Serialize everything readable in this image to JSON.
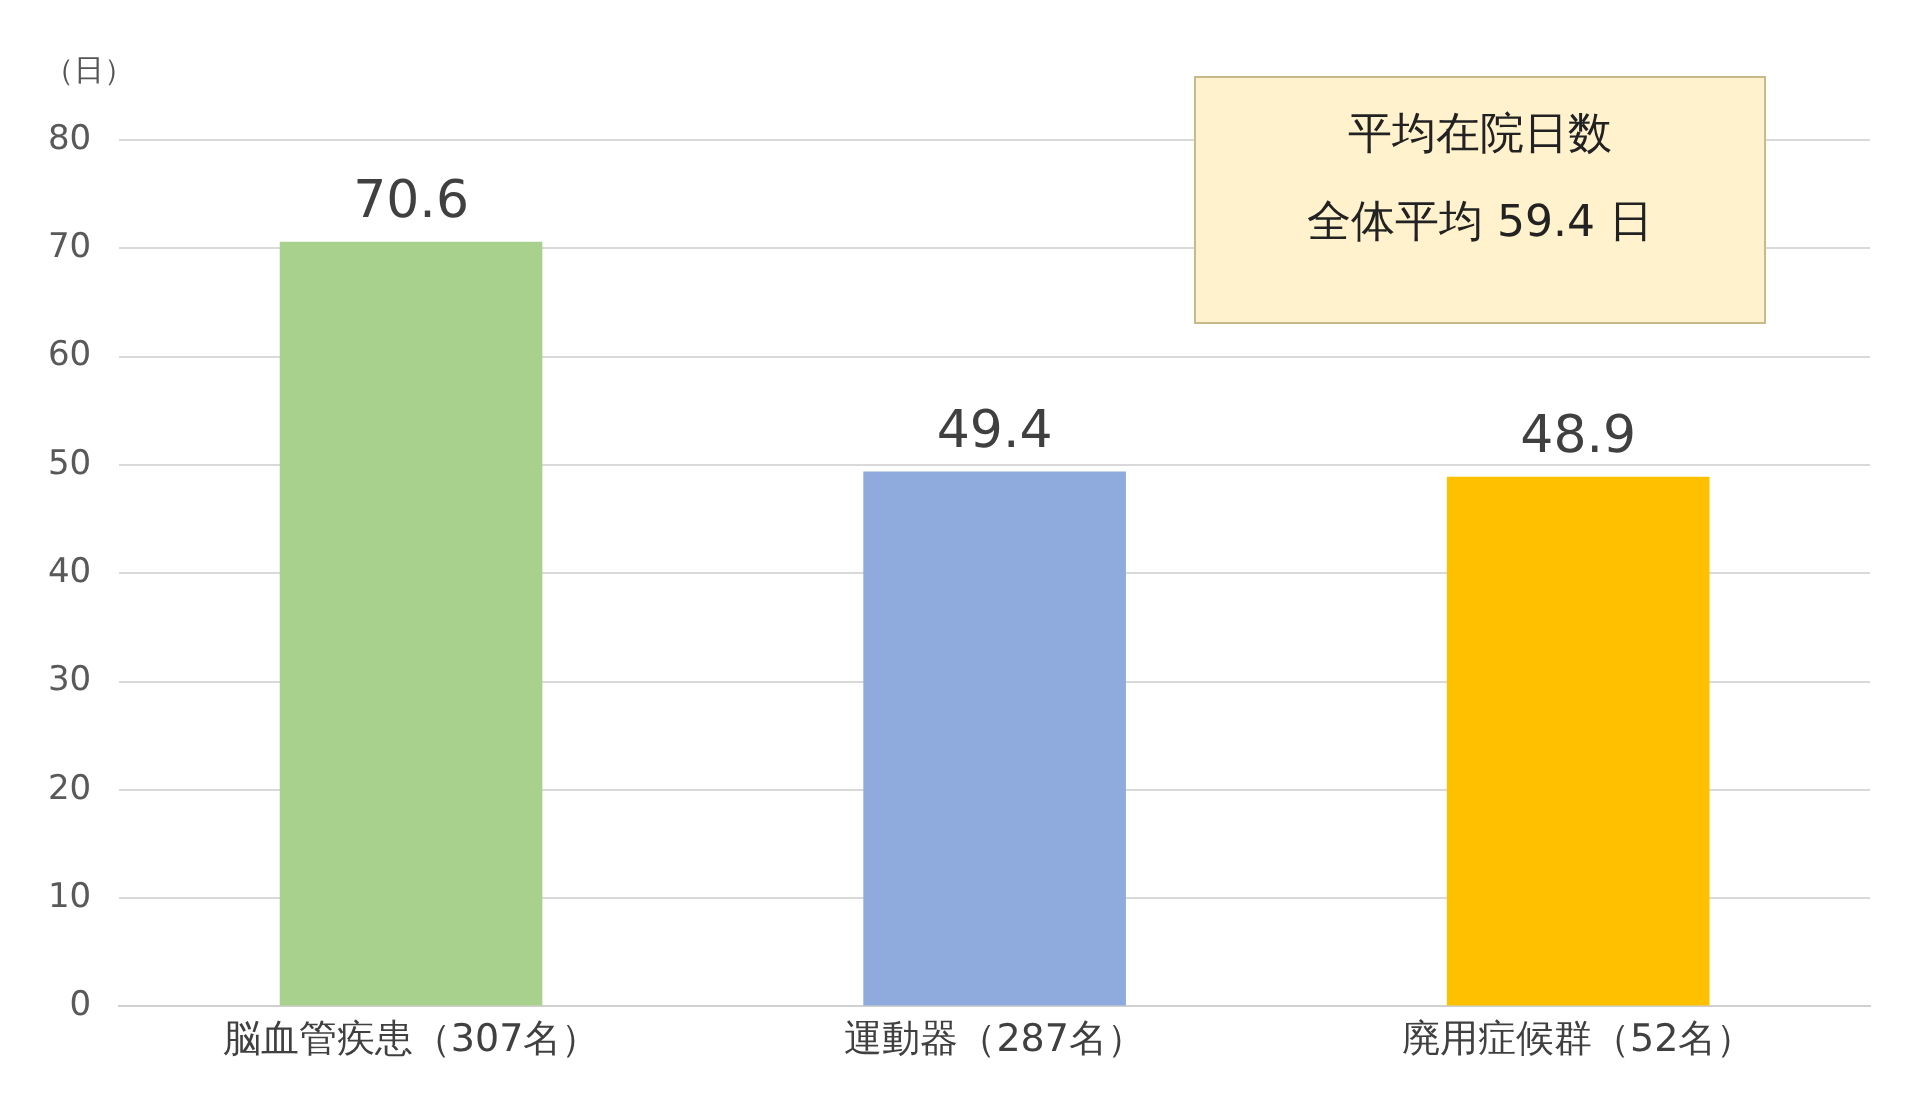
{
  "chart_data": {
    "type": "bar",
    "title": "平均在院日数",
    "ylabel": "（日）",
    "annotations": [
      "全体平均  59.4 日"
    ],
    "categories": [
      "脳血管疾患（307名）",
      "運動器（287名）",
      "廃用症候群（52名）"
    ],
    "values": [
      70.6,
      49.4,
      48.9
    ],
    "colors": [
      "#a9d18e",
      "#8faadc",
      "#ffc000"
    ],
    "ylim": [
      0,
      80
    ],
    "yticks": [
      0,
      10,
      20,
      30,
      40,
      50,
      60,
      70,
      80
    ],
    "grid": "y",
    "data_labels": true
  }
}
